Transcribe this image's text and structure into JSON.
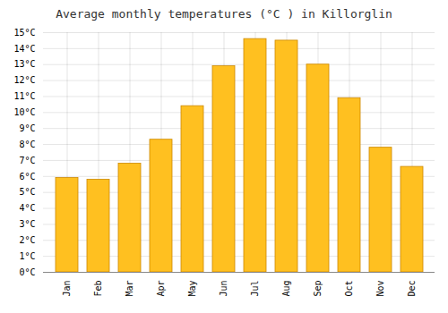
{
  "chart_data": {
    "type": "bar",
    "title": "Average monthly temperatures (°C ) in Killorglin",
    "categories": [
      "Jan",
      "Feb",
      "Mar",
      "Apr",
      "May",
      "Jun",
      "Jul",
      "Aug",
      "Sep",
      "Oct",
      "Nov",
      "Dec"
    ],
    "values": [
      5.9,
      5.8,
      6.8,
      8.3,
      10.4,
      12.9,
      14.6,
      14.5,
      13.0,
      10.9,
      7.8,
      6.6
    ],
    "color": "#FFC020",
    "ylim": [
      0,
      15
    ],
    "yticks": [
      {
        "value": 0,
        "label": "0°C"
      },
      {
        "value": 1,
        "label": "1°C"
      },
      {
        "value": 2,
        "label": "2°C"
      },
      {
        "value": 3,
        "label": "3°C"
      },
      {
        "value": 4,
        "label": "4°C"
      },
      {
        "value": 5,
        "label": "5°C"
      },
      {
        "value": 6,
        "label": "6°C"
      },
      {
        "value": 7,
        "label": "7°C"
      },
      {
        "value": 8,
        "label": "8°C"
      },
      {
        "value": 9,
        "label": "9°C"
      },
      {
        "value": 10,
        "label": "10°C"
      },
      {
        "value": 11,
        "label": "11°C"
      },
      {
        "value": 12,
        "label": "12°C"
      },
      {
        "value": 13,
        "label": "13°C"
      },
      {
        "value": 14,
        "label": "14°C"
      },
      {
        "value": 15,
        "label": "15°C"
      }
    ],
    "grid": true
  }
}
